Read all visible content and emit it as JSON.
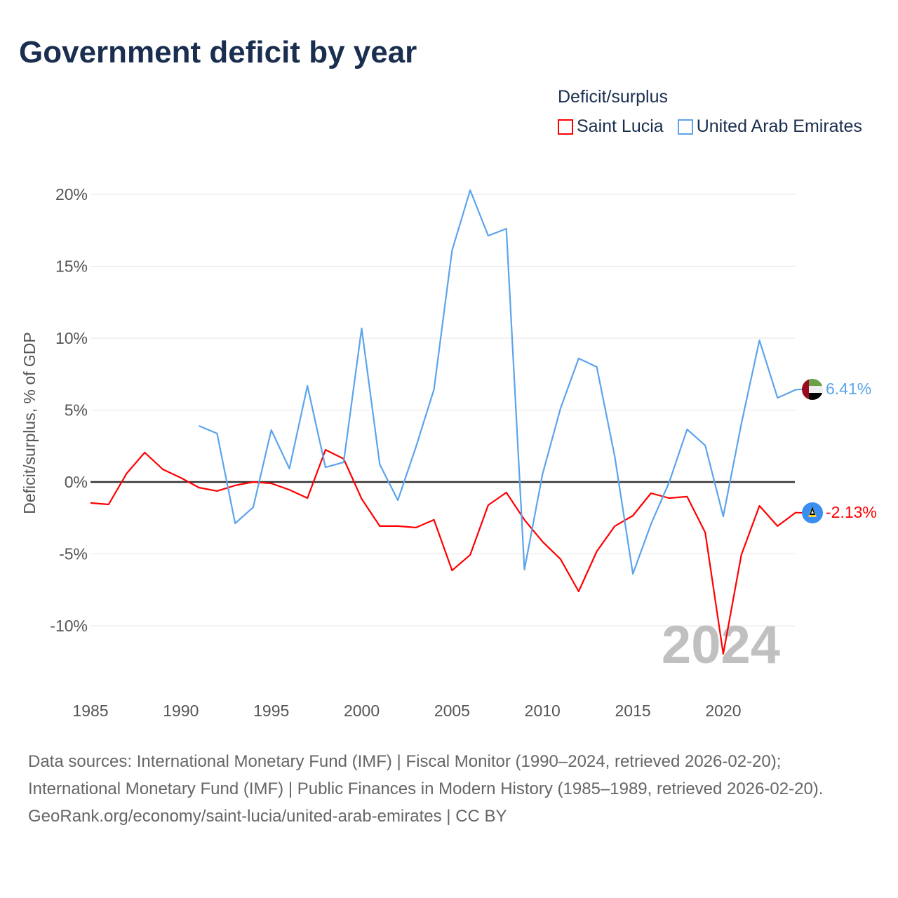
{
  "title": "Government deficit by year",
  "legend": {
    "title": "Deficit/surplus"
  },
  "colors": {
    "saint_lucia": "#ff0000",
    "uae": "#5ba4ec",
    "zero_line": "#333333",
    "grid": "#e6e6e6"
  },
  "chart_data": {
    "type": "line",
    "title": "Government deficit by year",
    "xlabel": "",
    "ylabel": "Deficit/surplus, % of GDP",
    "xlim": [
      1985,
      2024
    ],
    "ylim": [
      -13,
      21
    ],
    "x_ticks": [
      1985,
      1990,
      1995,
      2000,
      2005,
      2010,
      2015,
      2020
    ],
    "y_ticks": [
      -10,
      -5,
      0,
      5,
      10,
      15,
      20
    ],
    "y_tick_labels": [
      "-10%",
      "-5%",
      "0%",
      "5%",
      "10%",
      "15%",
      "20%"
    ],
    "x_tick_labels": [
      "1985",
      "1990",
      "1995",
      "2000",
      "2005",
      "2010",
      "2015",
      "2020"
    ],
    "grid": true,
    "legend_position": "top-right",
    "year_watermark": "2024",
    "series": [
      {
        "name": "Saint Lucia",
        "end_label": "-2.13%",
        "start_year": 1985,
        "values": [
          -1.46,
          -1.56,
          0.59,
          2.05,
          0.88,
          0.29,
          -0.39,
          -0.63,
          -0.24,
          0.0,
          -0.1,
          -0.54,
          -1.12,
          2.24,
          1.61,
          -1.17,
          -3.07,
          -3.07,
          -3.17,
          -2.63,
          -6.15,
          -5.07,
          -1.61,
          -0.73,
          -2.63,
          -4.15,
          -5.37,
          -7.61,
          -4.83,
          -3.07,
          -2.34,
          -0.78,
          -1.12,
          -1.02,
          -3.51,
          -11.95,
          -5.07,
          -1.66,
          -3.07,
          -2.13
        ]
      },
      {
        "name": "United Arab Emirates",
        "end_label": "6.41%",
        "start_year": 1991,
        "values": [
          3.9,
          3.37,
          -2.88,
          -1.76,
          3.61,
          0.93,
          6.68,
          1.02,
          1.37,
          10.68,
          1.22,
          -1.27,
          2.44,
          6.44,
          16.1,
          20.29,
          17.12,
          17.61,
          -6.1,
          0.54,
          5.12,
          8.59,
          8.0,
          1.76,
          -6.39,
          -2.93,
          -0.05,
          3.66,
          2.54,
          -2.39,
          4.05,
          9.85,
          5.85,
          6.41
        ]
      }
    ]
  },
  "footer": {
    "sources": "Data sources: International Monetary Fund (IMF) | Fiscal Monitor (1990–2024, retrieved 2026-02-20); International Monetary Fund (IMF) | Public Finances in Modern History (1985–1989, retrieved 2026-02-20).",
    "credit": "GeoRank.org/economy/saint-lucia/united-arab-emirates | CC BY"
  }
}
